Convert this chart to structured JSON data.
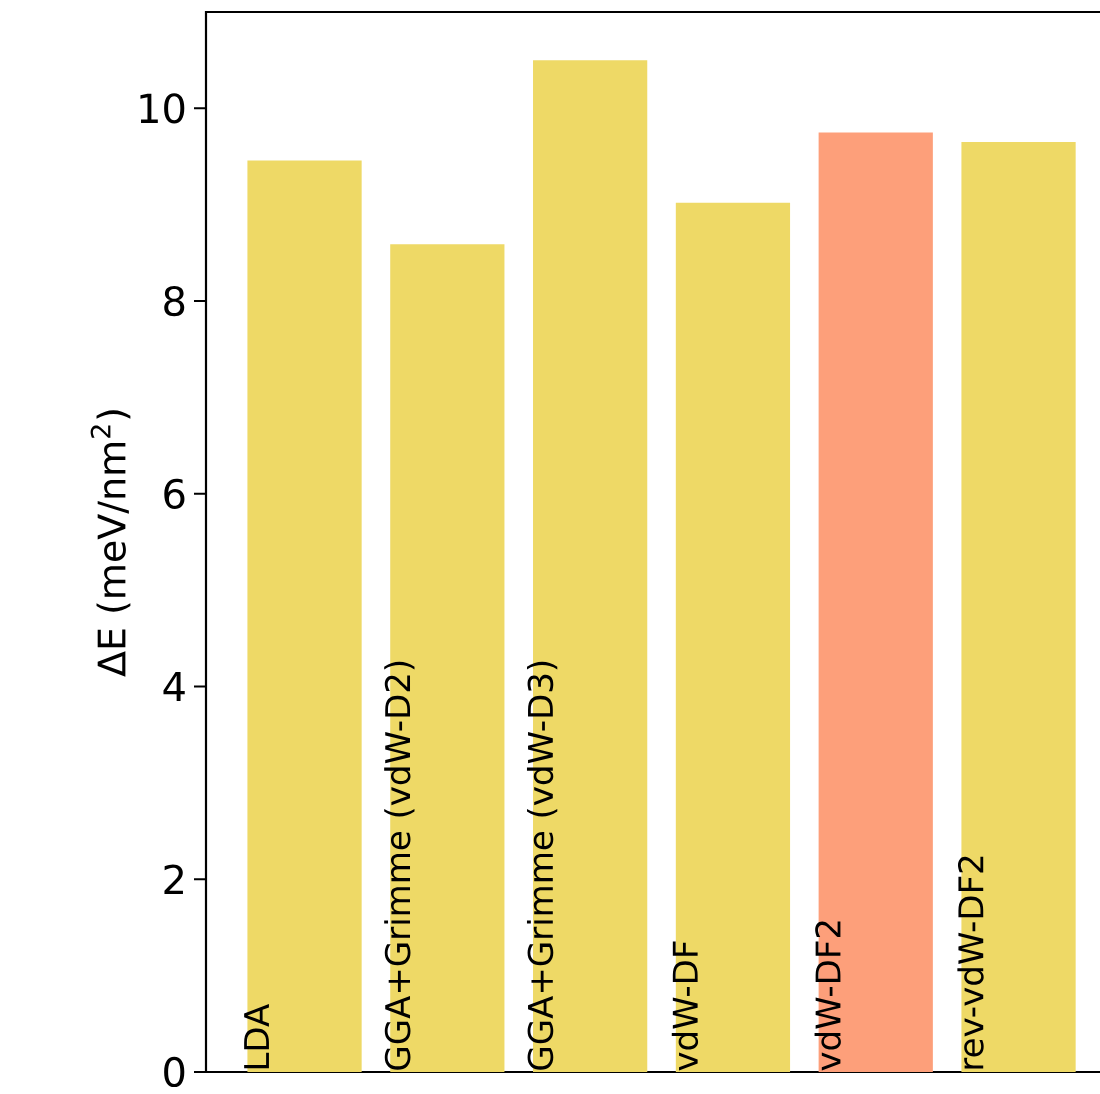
{
  "chart_data": {
    "type": "bar",
    "categories": [
      "LDA",
      "GGA+Grimme (vdW-D2)",
      "GGA+Grimme (vdW-D3)",
      "vdW-DF",
      "vdW-DF2",
      "rev-vdW-DF2"
    ],
    "values": [
      9.46,
      8.59,
      10.5,
      9.02,
      9.75,
      9.65
    ],
    "colors": [
      "#eed966",
      "#eed966",
      "#eed966",
      "#eed966",
      "#fd9f7a",
      "#eed966"
    ],
    "ylabel": "ΔE (meV/nm$^{2}$)",
    "ylim": [
      0,
      11
    ],
    "yticks": [
      0,
      2,
      4,
      6,
      8,
      10
    ]
  }
}
